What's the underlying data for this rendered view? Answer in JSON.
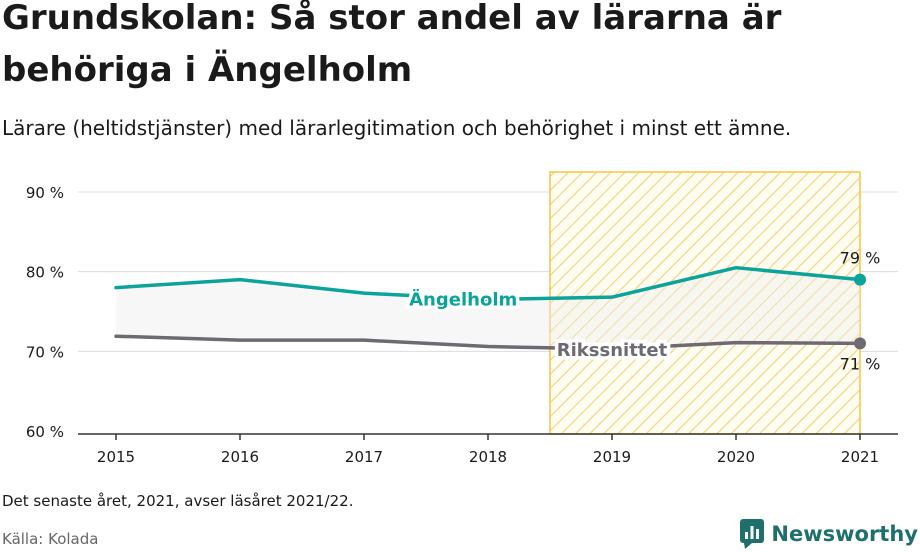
{
  "title": "Grundskolan: Så stor andel av lärarna är behöriga i Ängelholm",
  "subtitle": "Lärare (heltidstjänster) med lärarlegitimation och behörighet i minst ett ämne.",
  "note": "Det senaste året, 2021, avser läsåret 2021/22.",
  "source": "Källa: Kolada",
  "brand": {
    "name": "Newsworthy",
    "color": "#1f6f6c"
  },
  "chart_data": {
    "type": "line",
    "x": [
      "2015",
      "2016",
      "2017",
      "2018",
      "2019",
      "2020",
      "2021"
    ],
    "ylim": [
      60,
      90
    ],
    "yticks": [
      60,
      70,
      80,
      90
    ],
    "ytick_labels": [
      "60 %",
      "70 %",
      "80 %",
      "90 %"
    ],
    "grid": true,
    "highlight": {
      "from": "2018",
      "to": "2021",
      "style": "diagonal hatch",
      "color": "#f5c542"
    },
    "series": [
      {
        "name": "Ängelholm",
        "values": [
          78.0,
          79.0,
          77.3,
          76.5,
          76.8,
          80.5,
          79.0
        ],
        "color": "#0ba39a",
        "end_label": "79 %"
      },
      {
        "name": "Rikssnittet",
        "values": [
          71.9,
          71.4,
          71.4,
          70.6,
          70.3,
          71.1,
          71.0
        ],
        "color": "#6e6a72",
        "end_label": "71 %"
      }
    ]
  }
}
